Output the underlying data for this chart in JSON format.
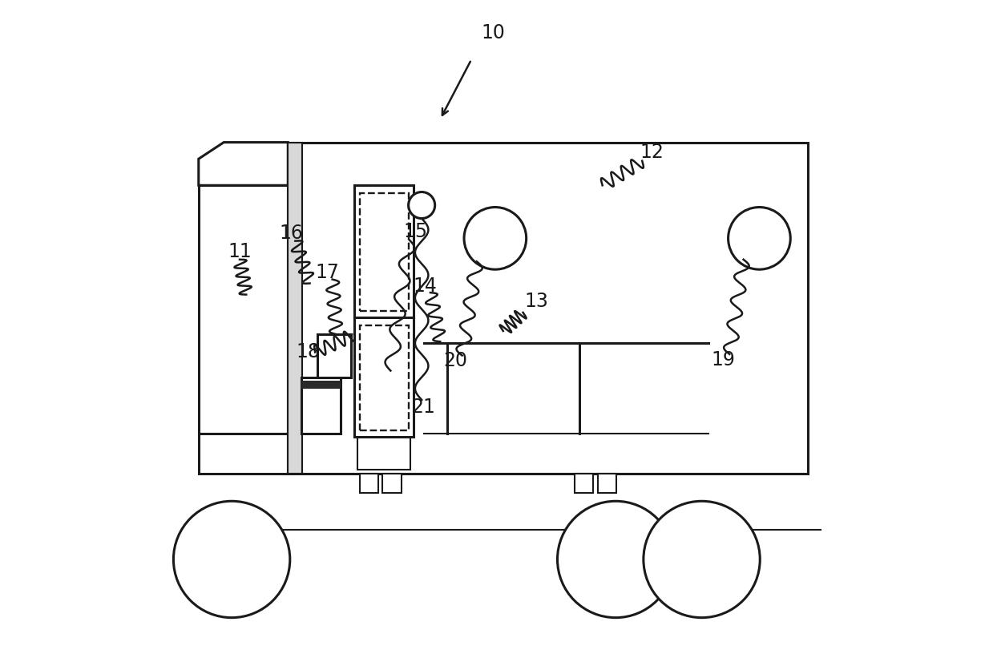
{
  "bg_color": "#ffffff",
  "line_color": "#1a1a1a",
  "lw": 2.2,
  "lw_thin": 1.5,
  "fs": 17
}
